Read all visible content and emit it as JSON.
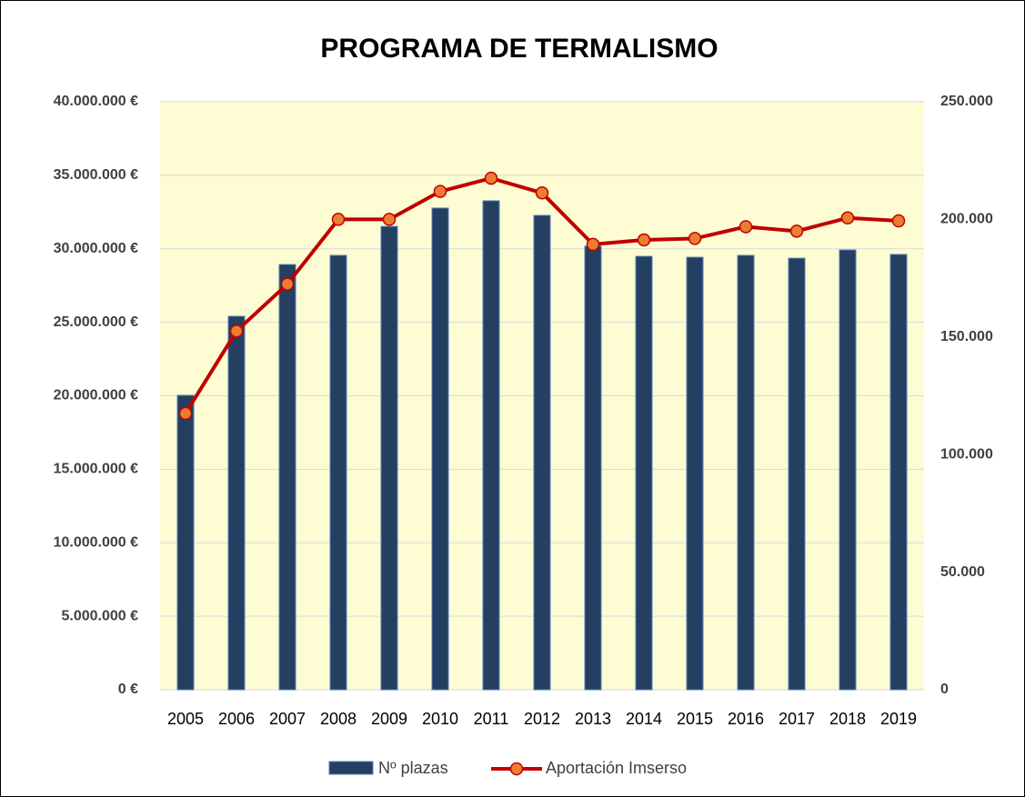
{
  "chart_data": {
    "type": "bar_line",
    "title": "PROGRAMA DE TERMALISMO",
    "categories": [
      "2005",
      "2006",
      "2007",
      "2008",
      "2009",
      "2010",
      "2011",
      "2012",
      "2013",
      "2014",
      "2015",
      "2016",
      "2017",
      "2018",
      "2019"
    ],
    "series": [
      {
        "name": "Nº plazas",
        "type": "bar",
        "axis": "y2",
        "color": "#243f60",
        "values": [
          125200,
          158800,
          180800,
          184700,
          197000,
          204800,
          207900,
          201700,
          188600,
          184300,
          183900,
          184700,
          183500,
          187000,
          185100
        ]
      },
      {
        "name": "Aportación Imserso",
        "type": "line",
        "axis": "y",
        "color": "#c00000",
        "marker_color": "#ed7d31",
        "values": [
          18800000,
          24400000,
          27600000,
          32000000,
          32000000,
          33900000,
          34800000,
          33800000,
          30300000,
          30600000,
          30700000,
          31500000,
          31200000,
          32100000,
          31900000
        ]
      }
    ],
    "ylim": [
      0,
      40000000
    ],
    "yticks": [
      {
        "value": 0,
        "label": "0 €"
      },
      {
        "value": 5000000,
        "label": "5.000.000 €"
      },
      {
        "value": 10000000,
        "label": "10.000.000 €"
      },
      {
        "value": 15000000,
        "label": "15.000.000 €"
      },
      {
        "value": 20000000,
        "label": "20.000.000 €"
      },
      {
        "value": 25000000,
        "label": "25.000.000 €"
      },
      {
        "value": 30000000,
        "label": "30.000.000 €"
      },
      {
        "value": 35000000,
        "label": "35.000.000 €"
      },
      {
        "value": 40000000,
        "label": "40.000.000 €"
      }
    ],
    "y2lim": [
      0,
      250000
    ],
    "y2ticks": [
      0,
      {
        "value": 50000,
        "label": "50.000"
      },
      {
        "value": 100000,
        "label": "100.000"
      },
      {
        "value": 150000,
        "label": "150.000"
      },
      {
        "value": 200000,
        "label": "200.000"
      },
      {
        "value": 250000,
        "label": "250.000"
      }
    ],
    "grid": true,
    "plot_background": "#fefcd2",
    "legend": "bottom"
  }
}
